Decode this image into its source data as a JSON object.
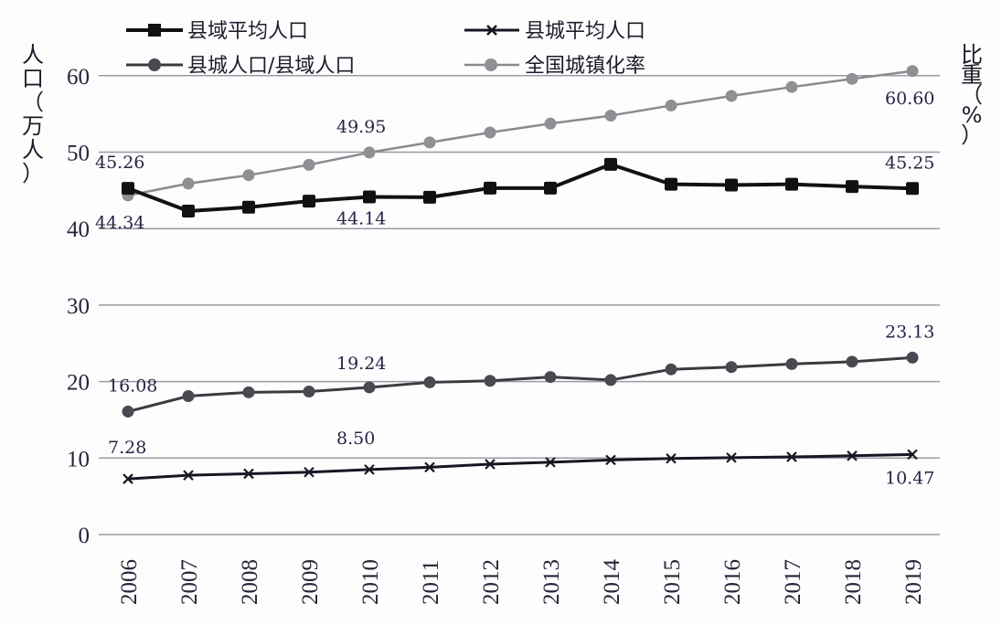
{
  "chart_data": {
    "type": "line",
    "title": "",
    "xlabel": "",
    "ylabel": "人口(万人)",
    "ylabel_right": "比重(%)",
    "ylim": [
      0,
      60
    ],
    "yticks": [
      0,
      10,
      20,
      30,
      40,
      50,
      60
    ],
    "grid": true,
    "legend_position": "top",
    "categories": [
      "2006",
      "2007",
      "2008",
      "2009",
      "2010",
      "2011",
      "2012",
      "2013",
      "2014",
      "2015",
      "2016",
      "2017",
      "2018",
      "2019"
    ],
    "series": [
      {
        "name": "县域平均人口",
        "marker": "square",
        "color": "#111111",
        "values": [
          45.26,
          42.3,
          42.8,
          43.6,
          44.14,
          44.1,
          45.3,
          45.3,
          48.4,
          45.8,
          45.7,
          45.8,
          45.5,
          45.25
        ]
      },
      {
        "name": "县城平均人口",
        "marker": "x",
        "color": "#1a1520",
        "values": [
          7.28,
          7.75,
          7.95,
          8.15,
          8.5,
          8.8,
          9.2,
          9.45,
          9.75,
          9.95,
          10.05,
          10.15,
          10.3,
          10.47
        ]
      },
      {
        "name": "县城人口/县域人口",
        "marker": "circle",
        "color": "#3c3a40",
        "values": [
          16.08,
          18.1,
          18.6,
          18.7,
          19.24,
          19.9,
          20.1,
          20.6,
          20.2,
          21.6,
          21.9,
          22.3,
          22.6,
          23.13
        ]
      },
      {
        "name": "全国城镇化率",
        "marker": "circle",
        "color": "#8a8a8f",
        "values": [
          44.34,
          45.89,
          46.99,
          48.34,
          49.95,
          51.27,
          52.57,
          53.73,
          54.77,
          56.1,
          57.35,
          58.52,
          59.58,
          60.6
        ]
      }
    ],
    "annotations": [
      {
        "series": 0,
        "index": 0,
        "text": "45.26"
      },
      {
        "series": 3,
        "index": 0,
        "text": "44.34"
      },
      {
        "series": 3,
        "index": 4,
        "text": "49.95"
      },
      {
        "series": 0,
        "index": 4,
        "text": "44.14"
      },
      {
        "series": 3,
        "index": 13,
        "text": "60.60"
      },
      {
        "series": 0,
        "index": 13,
        "text": "45.25"
      },
      {
        "series": 2,
        "index": 0,
        "text": "16.08"
      },
      {
        "series": 2,
        "index": 4,
        "text": "19.24"
      },
      {
        "series": 2,
        "index": 13,
        "text": "23.13"
      },
      {
        "series": 1,
        "index": 0,
        "text": "7.28"
      },
      {
        "series": 1,
        "index": 4,
        "text": "8.50"
      },
      {
        "series": 1,
        "index": 13,
        "text": "10.47"
      }
    ]
  },
  "legend": {
    "items": [
      {
        "label": "县域平均人口"
      },
      {
        "label": "县城平均人口"
      },
      {
        "label": "县城人口/县域人口"
      },
      {
        "label": "全国城镇化率"
      }
    ]
  },
  "axes": {
    "left_title_chars": [
      "人",
      "口",
      "（",
      "万",
      "人",
      "）"
    ],
    "right_title_chars": [
      "比",
      "重",
      "（",
      "%",
      "）"
    ]
  }
}
